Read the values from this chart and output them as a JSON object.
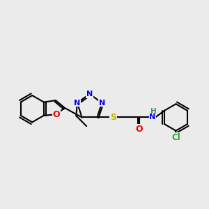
{
  "bg": "#ebebeb",
  "bc": "#000000",
  "bw": 1.5,
  "atom_colors": {
    "N": "#0000ee",
    "O": "#ee0000",
    "S": "#bbbb00",
    "Cl": "#22aa22",
    "NH": "#448888"
  },
  "fs": 7.5,
  "figsize": [
    3.0,
    3.0
  ],
  "dpi": 100
}
